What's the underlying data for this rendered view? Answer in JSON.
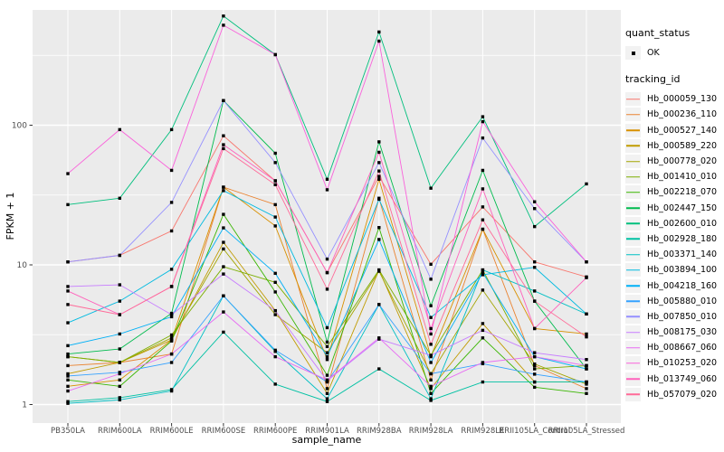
{
  "chart_data": {
    "type": "line",
    "title": "",
    "xlabel": "sample_name",
    "ylabel": "FPKM + 1",
    "y_scale": "log10",
    "y_ticks": [
      1,
      10,
      100
    ],
    "y_minor_ticks": [
      3.162,
      31.62,
      316.2
    ],
    "ylim": [
      0.95,
      700
    ],
    "grid": true,
    "legend_position": "right",
    "point_shape": "filled-square",
    "point_color": "#000000",
    "panel_color": "#EBEBEB",
    "grid_color": "#FFFFFF",
    "categories": [
      "PB350LA",
      "RRIM600LA",
      "RRIM600LE",
      "RRIM600SE",
      "RRIM600PE",
      "RRIM901LA",
      "RRIM928BA",
      "RRIM928LA",
      "RRIM928LE",
      "RRII105LA_Control",
      "RRII105LA_Stressed"
    ],
    "series": [
      {
        "name": "Hb_000059_130",
        "color": "#F8766D",
        "values": [
          10.5,
          11.7,
          17.5,
          84,
          40,
          8.8,
          43,
          10.1,
          26,
          10.5,
          8.2
        ]
      },
      {
        "name": "Hb_000236_110",
        "color": "#EA8331",
        "values": [
          1.9,
          2.0,
          2.3,
          36,
          27,
          1.3,
          30,
          1.5,
          18,
          1.9,
          1.3
        ]
      },
      {
        "name": "Hb_000527_140",
        "color": "#D89000",
        "values": [
          1.35,
          1.5,
          2.9,
          36,
          19,
          2.1,
          41,
          2.2,
          18,
          3.5,
          3.2
        ]
      },
      {
        "name": "Hb_000589_220",
        "color": "#C09B00",
        "values": [
          1.66,
          2.0,
          2.9,
          14.5,
          4.7,
          1.2,
          9.2,
          1.3,
          3.8,
          1.45,
          1.45
        ]
      },
      {
        "name": "Hb_000778_020",
        "color": "#A3A500",
        "values": [
          2.2,
          2.0,
          3.0,
          13,
          4.4,
          2.35,
          9.0,
          1.66,
          6.6,
          1.95,
          1.4
        ]
      },
      {
        "name": "Hb_001410_010",
        "color": "#7CAE00",
        "values": [
          2.2,
          2.0,
          3.15,
          9.7,
          7.5,
          2.6,
          9.2,
          2.25,
          9.2,
          1.8,
          1.9
        ]
      },
      {
        "name": "Hb_002218_070",
        "color": "#39B600",
        "values": [
          1.5,
          1.35,
          2.85,
          23,
          6.4,
          1.62,
          18.5,
          1.2,
          3.0,
          1.33,
          1.2
        ]
      },
      {
        "name": "Hb_002447_150",
        "color": "#00BB4E",
        "values": [
          2.3,
          2.5,
          4.5,
          150,
          63,
          2.8,
          76,
          5.1,
          47.5,
          5.5,
          1.8
        ]
      },
      {
        "name": "Hb_002600_010",
        "color": "#00BF7D",
        "values": [
          27,
          30,
          93,
          605,
          320,
          41,
          465,
          35.4,
          115,
          18.8,
          38
        ]
      },
      {
        "name": "Hb_002928_180",
        "color": "#00C1A3",
        "values": [
          1.05,
          1.12,
          1.28,
          3.3,
          1.4,
          1.05,
          1.8,
          1.07,
          1.45,
          1.45,
          1.45
        ]
      },
      {
        "name": "Hb_003371_140",
        "color": "#00BFC4",
        "values": [
          1.02,
          1.08,
          1.25,
          6.0,
          2.4,
          1.1,
          5.2,
          1.1,
          9.2,
          6.5,
          4.45
        ]
      },
      {
        "name": "Hb_003894_100",
        "color": "#00BAE0",
        "values": [
          3.85,
          5.5,
          9.3,
          34,
          22,
          3.55,
          29.5,
          4.2,
          8.5,
          9.6,
          4.45
        ]
      },
      {
        "name": "Hb_004218_160",
        "color": "#00B0F6",
        "values": [
          2.64,
          3.2,
          4.25,
          18.4,
          8.7,
          2.2,
          15.2,
          2.0,
          8.8,
          2.2,
          1.8
        ]
      },
      {
        "name": "Hb_005880_010",
        "color": "#35A2FF",
        "values": [
          1.6,
          1.7,
          2.0,
          6.0,
          2.45,
          1.45,
          5.2,
          1.66,
          1.96,
          1.65,
          1.45
        ]
      },
      {
        "name": "Hb_007850_010",
        "color": "#9590FF",
        "values": [
          10.5,
          11.7,
          28,
          150,
          54,
          11,
          54,
          7.9,
          81,
          25.3,
          10.5
        ]
      },
      {
        "name": "Hb_008175_030",
        "color": "#C77CFF",
        "values": [
          7.0,
          7.2,
          4.4,
          8.6,
          4.7,
          1.48,
          2.94,
          2.25,
          3.4,
          2.35,
          2.1
        ]
      },
      {
        "name": "Hb_008667_060",
        "color": "#E76BF3",
        "values": [
          1.25,
          1.66,
          2.3,
          4.6,
          2.2,
          1.5,
          3.0,
          1.35,
          2.0,
          2.2,
          1.9
        ]
      },
      {
        "name": "Hb_010253_020",
        "color": "#FA62DB",
        "values": [
          45,
          93,
          47.5,
          520,
          320,
          34.5,
          400,
          3.2,
          106,
          28.3,
          10.5
        ]
      },
      {
        "name": "Hb_013749_060",
        "color": "#FF62BC",
        "values": [
          6.5,
          4.4,
          7.0,
          72.5,
          40,
          8.8,
          64,
          3.5,
          35,
          3.5,
          8.1
        ]
      },
      {
        "name": "Hb_057079_020",
        "color": "#FF6A98",
        "values": [
          5.2,
          4.4,
          7.0,
          68,
          37.5,
          6.7,
          47,
          2.7,
          21,
          5.5,
          3.05
        ]
      }
    ]
  },
  "legend": {
    "quant_status_title": "quant_status",
    "ok_label": "OK",
    "tracking_id_title": "tracking_id"
  }
}
